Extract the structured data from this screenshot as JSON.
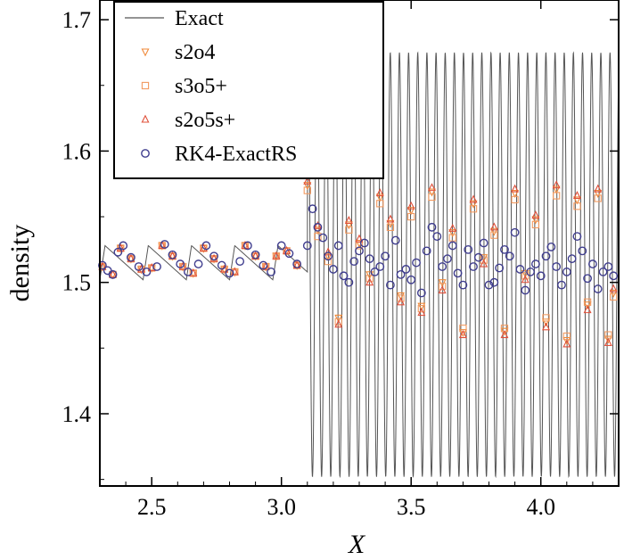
{
  "chart_data": {
    "type": "line",
    "title": "",
    "xlabel": "X",
    "ylabel": "density",
    "xlim": [
      2.3,
      4.3
    ],
    "ylim": [
      1.345,
      1.715
    ],
    "xticks": [
      {
        "value": 2.5,
        "label": "2.5"
      },
      {
        "value": 3.0,
        "label": "3.0"
      },
      {
        "value": 3.5,
        "label": "3.5"
      },
      {
        "value": 4.0,
        "label": "4.0"
      }
    ],
    "yticks": [
      {
        "value": 1.4,
        "label": "1.4"
      },
      {
        "value": 1.5,
        "label": "1.5"
      },
      {
        "value": 1.6,
        "label": "1.6"
      },
      {
        "value": 1.7,
        "label": "1.7"
      }
    ],
    "legend": {
      "position": "top-left",
      "entries": [
        {
          "label": "Exact",
          "marker": "line",
          "color": "#555555"
        },
        {
          "label": "s2o4",
          "marker": "triangle-down",
          "color": "#f08a3a"
        },
        {
          "label": "s3o5+",
          "marker": "square",
          "color": "#f29a60"
        },
        {
          "label": "s2o5s+",
          "marker": "triangle-up",
          "color": "#e0503a"
        },
        {
          "label": "RK4-ExactRS",
          "marker": "circle",
          "color": "#3f3d8e"
        }
      ]
    },
    "series": [
      {
        "name": "Exact",
        "description": "Piecewise: pre-shock sawtooth (period 0.1667, amplitude 1.502-1.528) for X<3.1; post-shock sinusoid with 34 oscillations between 1.35 and 1.675 for X>3.1",
        "shock_x": 3.1,
        "pre_shock": {
          "period": 0.1667,
          "min": 1.502,
          "max": 1.528
        },
        "post_shock": {
          "oscillations": 34,
          "min": 1.352,
          "max": 1.675
        }
      },
      {
        "name": "s2o4",
        "points": [
          [
            2.31,
            1.512
          ],
          [
            2.35,
            1.506
          ],
          [
            2.38,
            1.526
          ],
          [
            2.42,
            1.518
          ],
          [
            2.46,
            1.51
          ],
          [
            2.5,
            1.511
          ],
          [
            2.54,
            1.528
          ],
          [
            2.58,
            1.52
          ],
          [
            2.62,
            1.512
          ],
          [
            2.66,
            1.507
          ],
          [
            2.7,
            1.526
          ],
          [
            2.74,
            1.518
          ],
          [
            2.78,
            1.51
          ],
          [
            2.82,
            1.508
          ],
          [
            2.86,
            1.528
          ],
          [
            2.9,
            1.52
          ],
          [
            2.94,
            1.512
          ],
          [
            2.98,
            1.52
          ],
          [
            3.02,
            1.524
          ],
          [
            3.06,
            1.513
          ],
          [
            3.1,
            1.574
          ],
          [
            3.14,
            1.54
          ],
          [
            3.18,
            1.52
          ],
          [
            3.22,
            1.473
          ],
          [
            3.26,
            1.544
          ],
          [
            3.3,
            1.53
          ],
          [
            3.34,
            1.506
          ],
          [
            3.38,
            1.565
          ],
          [
            3.42,
            1.545
          ],
          [
            3.46,
            1.49
          ],
          [
            3.5,
            1.555
          ],
          [
            3.54,
            1.482
          ],
          [
            3.58,
            1.569
          ],
          [
            3.62,
            1.5
          ],
          [
            3.66,
            1.538
          ],
          [
            3.7,
            1.462
          ],
          [
            3.74,
            1.56
          ],
          [
            3.78,
            1.519
          ],
          [
            3.82,
            1.539
          ],
          [
            3.86,
            1.463
          ],
          [
            3.9,
            1.568
          ],
          [
            3.94,
            1.507
          ],
          [
            3.98,
            1.548
          ],
          [
            4.02,
            1.47
          ],
          [
            4.06,
            1.571
          ],
          [
            4.1,
            1.456
          ],
          [
            4.14,
            1.563
          ],
          [
            4.18,
            1.483
          ],
          [
            4.22,
            1.568
          ],
          [
            4.26,
            1.457
          ],
          [
            4.28,
            1.492
          ]
        ]
      },
      {
        "name": "s3o5+",
        "points": [
          [
            2.31,
            1.512
          ],
          [
            2.35,
            1.506
          ],
          [
            2.38,
            1.526
          ],
          [
            2.42,
            1.518
          ],
          [
            2.46,
            1.51
          ],
          [
            2.5,
            1.511
          ],
          [
            2.54,
            1.528
          ],
          [
            2.58,
            1.52
          ],
          [
            2.62,
            1.512
          ],
          [
            2.66,
            1.507
          ],
          [
            2.7,
            1.526
          ],
          [
            2.74,
            1.518
          ],
          [
            2.78,
            1.51
          ],
          [
            2.82,
            1.508
          ],
          [
            2.86,
            1.528
          ],
          [
            2.9,
            1.52
          ],
          [
            2.94,
            1.512
          ],
          [
            2.98,
            1.52
          ],
          [
            3.02,
            1.524
          ],
          [
            3.06,
            1.513
          ],
          [
            3.1,
            1.57
          ],
          [
            3.14,
            1.535
          ],
          [
            3.18,
            1.516
          ],
          [
            3.22,
            1.47
          ],
          [
            3.26,
            1.54
          ],
          [
            3.3,
            1.528
          ],
          [
            3.34,
            1.503
          ],
          [
            3.38,
            1.56
          ],
          [
            3.42,
            1.542
          ],
          [
            3.46,
            1.488
          ],
          [
            3.5,
            1.55
          ],
          [
            3.54,
            1.48
          ],
          [
            3.58,
            1.565
          ],
          [
            3.62,
            1.497
          ],
          [
            3.66,
            1.534
          ],
          [
            3.7,
            1.465
          ],
          [
            3.74,
            1.556
          ],
          [
            3.78,
            1.517
          ],
          [
            3.82,
            1.536
          ],
          [
            3.86,
            1.465
          ],
          [
            3.9,
            1.563
          ],
          [
            3.94,
            1.505
          ],
          [
            3.98,
            1.544
          ],
          [
            4.02,
            1.473
          ],
          [
            4.06,
            1.566
          ],
          [
            4.1,
            1.459
          ],
          [
            4.14,
            1.558
          ],
          [
            4.18,
            1.485
          ],
          [
            4.22,
            1.564
          ],
          [
            4.26,
            1.46
          ],
          [
            4.28,
            1.489
          ]
        ]
      },
      {
        "name": "s2o5s+",
        "points": [
          [
            2.31,
            1.512
          ],
          [
            2.35,
            1.506
          ],
          [
            2.38,
            1.526
          ],
          [
            2.42,
            1.518
          ],
          [
            2.46,
            1.51
          ],
          [
            2.5,
            1.511
          ],
          [
            2.54,
            1.528
          ],
          [
            2.58,
            1.52
          ],
          [
            2.62,
            1.512
          ],
          [
            2.66,
            1.507
          ],
          [
            2.7,
            1.526
          ],
          [
            2.74,
            1.518
          ],
          [
            2.78,
            1.51
          ],
          [
            2.82,
            1.508
          ],
          [
            2.86,
            1.528
          ],
          [
            2.9,
            1.52
          ],
          [
            2.94,
            1.512
          ],
          [
            2.98,
            1.52
          ],
          [
            3.02,
            1.524
          ],
          [
            3.06,
            1.513
          ],
          [
            3.1,
            1.577
          ],
          [
            3.14,
            1.543
          ],
          [
            3.18,
            1.523
          ],
          [
            3.22,
            1.468
          ],
          [
            3.26,
            1.547
          ],
          [
            3.3,
            1.533
          ],
          [
            3.34,
            1.5
          ],
          [
            3.38,
            1.568
          ],
          [
            3.42,
            1.548
          ],
          [
            3.46,
            1.485
          ],
          [
            3.5,
            1.558
          ],
          [
            3.54,
            1.477
          ],
          [
            3.58,
            1.572
          ],
          [
            3.62,
            1.494
          ],
          [
            3.66,
            1.541
          ],
          [
            3.7,
            1.46
          ],
          [
            3.74,
            1.563
          ],
          [
            3.78,
            1.514
          ],
          [
            3.82,
            1.542
          ],
          [
            3.86,
            1.46
          ],
          [
            3.9,
            1.571
          ],
          [
            3.94,
            1.502
          ],
          [
            3.98,
            1.551
          ],
          [
            4.02,
            1.466
          ],
          [
            4.06,
            1.574
          ],
          [
            4.1,
            1.453
          ],
          [
            4.14,
            1.566
          ],
          [
            4.18,
            1.479
          ],
          [
            4.22,
            1.571
          ],
          [
            4.26,
            1.454
          ],
          [
            4.28,
            1.495
          ]
        ]
      },
      {
        "name": "RK4-ExactRS",
        "points": [
          [
            2.31,
            1.513
          ],
          [
            2.33,
            1.509
          ],
          [
            2.35,
            1.506
          ],
          [
            2.37,
            1.523
          ],
          [
            2.39,
            1.528
          ],
          [
            2.42,
            1.519
          ],
          [
            2.45,
            1.512
          ],
          [
            2.48,
            1.508
          ],
          [
            2.52,
            1.512
          ],
          [
            2.55,
            1.529
          ],
          [
            2.58,
            1.521
          ],
          [
            2.61,
            1.514
          ],
          [
            2.64,
            1.508
          ],
          [
            2.68,
            1.514
          ],
          [
            2.71,
            1.528
          ],
          [
            2.74,
            1.52
          ],
          [
            2.77,
            1.513
          ],
          [
            2.8,
            1.507
          ],
          [
            2.84,
            1.516
          ],
          [
            2.87,
            1.528
          ],
          [
            2.9,
            1.521
          ],
          [
            2.93,
            1.513
          ],
          [
            2.96,
            1.508
          ],
          [
            3.0,
            1.528
          ],
          [
            3.03,
            1.522
          ],
          [
            3.06,
            1.514
          ],
          [
            3.1,
            1.528
          ],
          [
            3.12,
            1.556
          ],
          [
            3.14,
            1.542
          ],
          [
            3.16,
            1.534
          ],
          [
            3.18,
            1.52
          ],
          [
            3.2,
            1.51
          ],
          [
            3.22,
            1.528
          ],
          [
            3.24,
            1.505
          ],
          [
            3.26,
            1.5
          ],
          [
            3.28,
            1.516
          ],
          [
            3.3,
            1.524
          ],
          [
            3.32,
            1.53
          ],
          [
            3.34,
            1.518
          ],
          [
            3.36,
            1.508
          ],
          [
            3.38,
            1.512
          ],
          [
            3.4,
            1.52
          ],
          [
            3.42,
            1.498
          ],
          [
            3.44,
            1.532
          ],
          [
            3.46,
            1.506
          ],
          [
            3.48,
            1.51
          ],
          [
            3.5,
            1.502
          ],
          [
            3.52,
            1.515
          ],
          [
            3.54,
            1.492
          ],
          [
            3.56,
            1.524
          ],
          [
            3.58,
            1.542
          ],
          [
            3.6,
            1.535
          ],
          [
            3.62,
            1.512
          ],
          [
            3.64,
            1.518
          ],
          [
            3.66,
            1.528
          ],
          [
            3.68,
            1.507
          ],
          [
            3.7,
            1.498
          ],
          [
            3.72,
            1.525
          ],
          [
            3.74,
            1.512
          ],
          [
            3.76,
            1.519
          ],
          [
            3.78,
            1.53
          ],
          [
            3.8,
            1.498
          ],
          [
            3.82,
            1.5
          ],
          [
            3.84,
            1.511
          ],
          [
            3.86,
            1.525
          ],
          [
            3.88,
            1.52
          ],
          [
            3.9,
            1.538
          ],
          [
            3.92,
            1.51
          ],
          [
            3.94,
            1.494
          ],
          [
            3.96,
            1.508
          ],
          [
            3.98,
            1.514
          ],
          [
            4.0,
            1.505
          ],
          [
            4.02,
            1.52
          ],
          [
            4.04,
            1.527
          ],
          [
            4.06,
            1.512
          ],
          [
            4.08,
            1.498
          ],
          [
            4.1,
            1.508
          ],
          [
            4.12,
            1.518
          ],
          [
            4.14,
            1.535
          ],
          [
            4.16,
            1.524
          ],
          [
            4.18,
            1.503
          ],
          [
            4.2,
            1.514
          ],
          [
            4.22,
            1.495
          ],
          [
            4.24,
            1.508
          ],
          [
            4.26,
            1.512
          ],
          [
            4.28,
            1.505
          ]
        ]
      }
    ]
  }
}
